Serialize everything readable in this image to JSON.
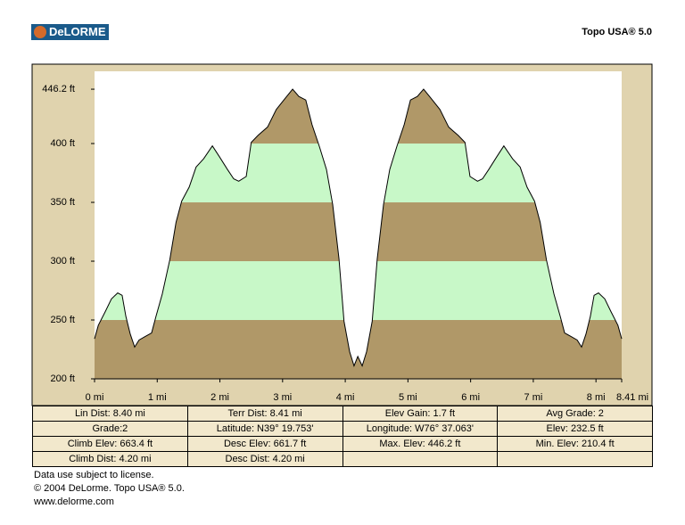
{
  "header": {
    "logo": "DeLORME",
    "product": "Topo USA® 5.0"
  },
  "chart_data": {
    "type": "area",
    "x": [
      0,
      0.06,
      0.17,
      0.27,
      0.37,
      0.44,
      0.5,
      0.57,
      0.64,
      0.71,
      0.81,
      0.91,
      0.98,
      1.08,
      1.2,
      1.3,
      1.39,
      1.51,
      1.62,
      1.74,
      1.88,
      1.99,
      2.12,
      2.22,
      2.3,
      2.42,
      2.5,
      2.61,
      2.76,
      2.9,
      3.05,
      3.16,
      3.26,
      3.37,
      3.47,
      3.59,
      3.7,
      3.8,
      3.9,
      3.98,
      4.07,
      4.14,
      4.2,
      4.27,
      4.34,
      4.43,
      4.51,
      4.61,
      4.71,
      4.82,
      4.94,
      5.04,
      5.15,
      5.25,
      5.36,
      5.51,
      5.65,
      5.8,
      5.91,
      5.99,
      6.11,
      6.19,
      6.29,
      6.42,
      6.53,
      6.67,
      6.79,
      6.9,
      7.02,
      7.11,
      7.21,
      7.33,
      7.43,
      7.5,
      7.6,
      7.7,
      7.77,
      7.84,
      7.91,
      7.97,
      8.04,
      8.14,
      8.24,
      8.35,
      8.41
    ],
    "series": [
      {
        "color": "#000000",
        "values": [
          234,
          245.5,
          257,
          268,
          273,
          271,
          253,
          238,
          227,
          233,
          236,
          239,
          253,
          272,
          301,
          333,
          351,
          363,
          380,
          387,
          398,
          389,
          378,
          370,
          368,
          372,
          401,
          407,
          414,
          429,
          439,
          446.2,
          440,
          437,
          416,
          397,
          378,
          348,
          302,
          249,
          223,
          211,
          219,
          211,
          223,
          249,
          302,
          348,
          378,
          397,
          416,
          437,
          440,
          446.2,
          439,
          429,
          414,
          407,
          401,
          372,
          368,
          370,
          378,
          389,
          398,
          387,
          380,
          363,
          351,
          333,
          301,
          272,
          253,
          239,
          236,
          233,
          227,
          238,
          253,
          271,
          273,
          268,
          257,
          245.5,
          234
        ]
      }
    ],
    "band_colors": [
      "#b09868",
      "#c8f8c8"
    ],
    "xlim": [
      0,
      8.41
    ],
    "xticks": [
      {
        "value": 0,
        "label": "0 mi"
      },
      {
        "value": 1,
        "label": "1 mi"
      },
      {
        "value": 2,
        "label": "2 mi"
      },
      {
        "value": 3,
        "label": "3 mi"
      },
      {
        "value": 4,
        "label": "4 mi"
      },
      {
        "value": 5,
        "label": "5 mi"
      },
      {
        "value": 6,
        "label": "6 mi"
      },
      {
        "value": 7,
        "label": "7 mi"
      },
      {
        "value": 8,
        "label": "8 mi"
      },
      {
        "value": 8.41,
        "label": "8.41 mi"
      }
    ],
    "ylim": [
      200,
      461.4
    ],
    "yticks": [
      {
        "value": 200,
        "label": "200 ft"
      },
      {
        "value": 250,
        "label": "250 ft"
      },
      {
        "value": 300,
        "label": "300 ft"
      },
      {
        "value": 350,
        "label": "350 ft"
      },
      {
        "value": 400,
        "label": "400 ft"
      },
      {
        "value": 446.2,
        "label": "446.2 ft"
      }
    ]
  },
  "table": {
    "rows": [
      [
        "Lin Dist: 8.40 mi",
        "Terr Dist: 8.41 mi",
        "Elev Gain: 1.7 ft",
        "Avg Grade: 2"
      ],
      [
        "Grade:2",
        "Latitude: N39° 19.753'",
        "Longitude: W76° 37.063'",
        "Elev: 232.5 ft"
      ],
      [
        "Climb Elev: 663.4 ft",
        "Desc Elev: 661.7 ft",
        "Max. Elev: 446.2 ft",
        "Min. Elev: 210.4 ft"
      ],
      [
        "Climb Dist: 4.20 mi",
        "Desc Dist: 4.20 mi"
      ]
    ]
  },
  "footer": [
    "Data use subject to license.",
    "© 2004 DeLorme. Topo USA® 5.0.",
    "www.delorme.com"
  ]
}
